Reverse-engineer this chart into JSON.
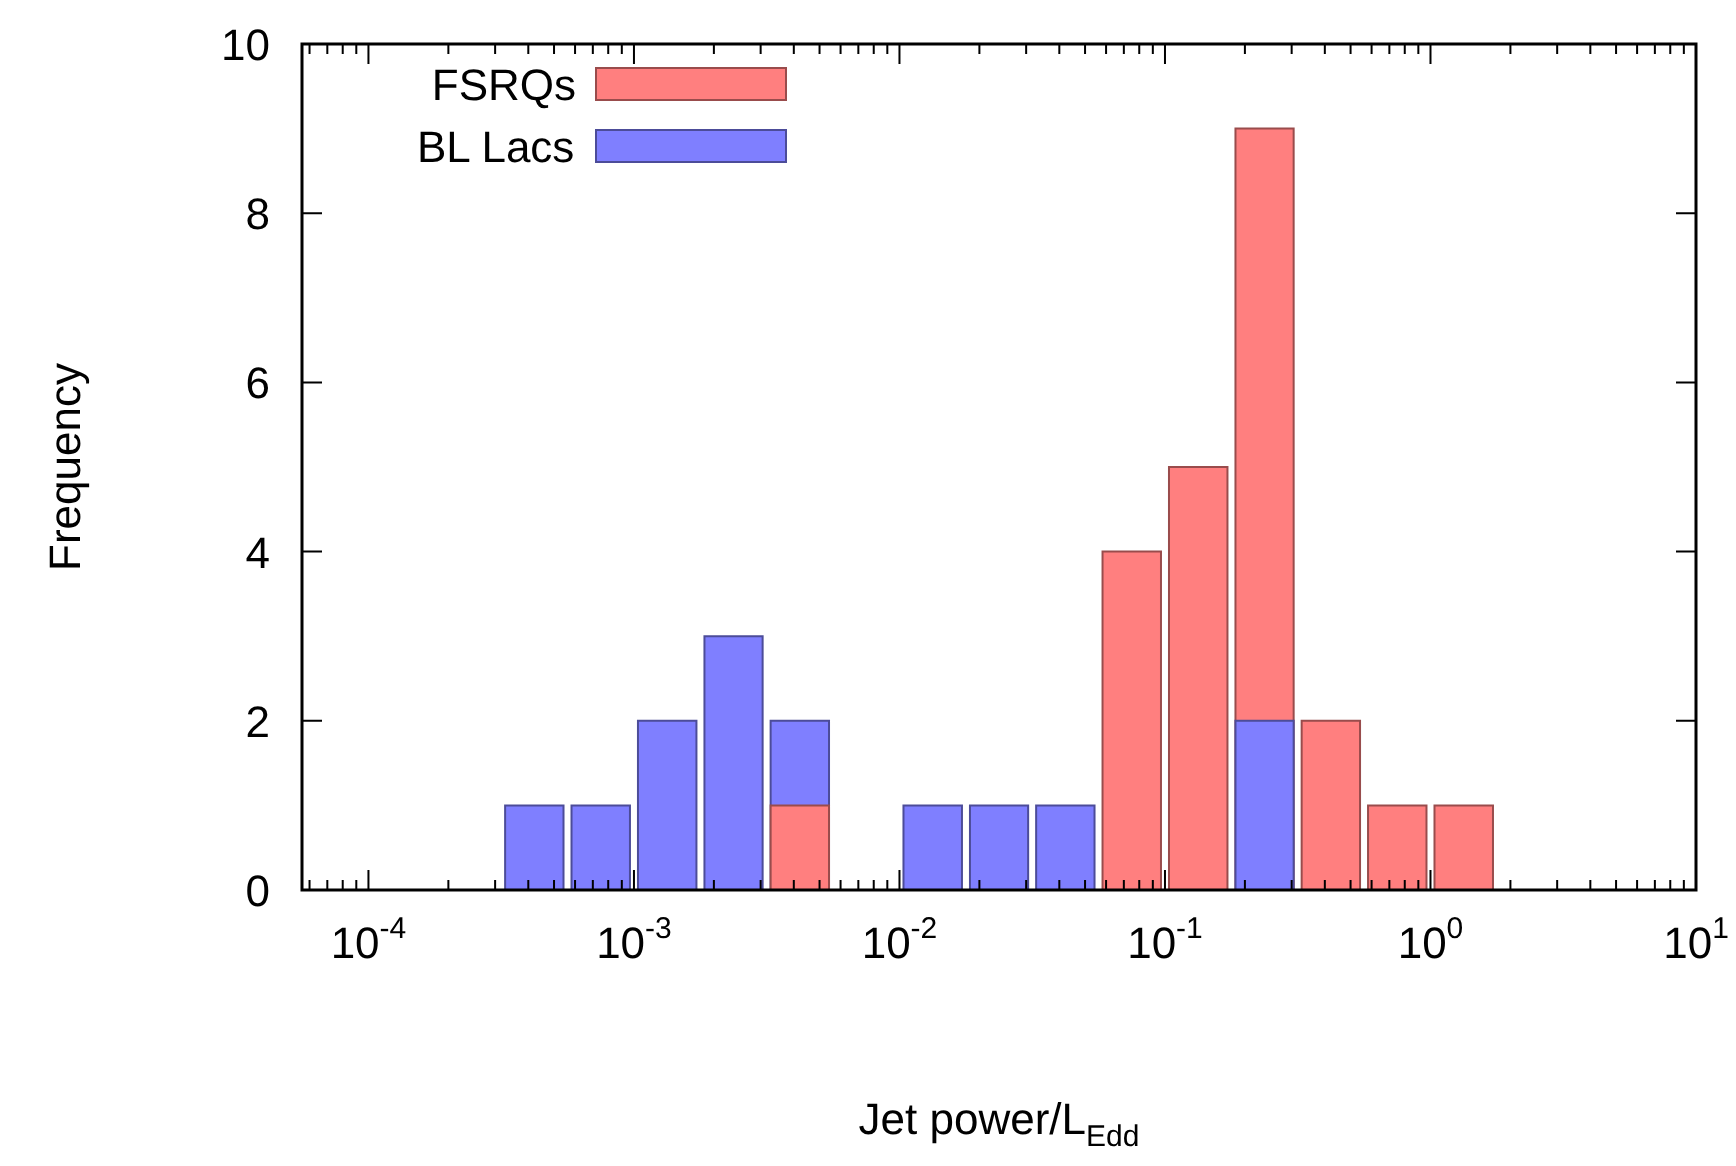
{
  "chart_data": {
    "type": "histogram",
    "xlabel": "Jet power/L$_{Edd}$",
    "ylabel": "Frequency",
    "log": "x",
    "bins": [
      0.000316,
      0.000562,
      0.001,
      0.00178,
      0.00316,
      0.00562,
      0.01,
      0.0178,
      0.0316,
      0.0562,
      0.1,
      0.178,
      0.316,
      0.562,
      1,
      1.78
    ],
    "series": [
      {
        "name": "FSRQs",
        "color": "#ff7f7f",
        "values": [
          0,
          0,
          0,
          0,
          1,
          0,
          0,
          0,
          0,
          4,
          5,
          9,
          2,
          1,
          1
        ]
      },
      {
        "name": "BL Lacs",
        "color": "#7f7fff",
        "values": [
          1,
          1,
          2,
          3,
          2,
          0,
          1,
          1,
          1,
          0,
          0,
          2,
          0,
          0,
          0
        ]
      }
    ],
    "xlim": [
      5.62e-05,
      10
    ],
    "xticks": [
      {
        "value": 0.0001,
        "label": "10$^{-4}$"
      },
      {
        "value": 0.001,
        "label": "10$^{-3}$"
      },
      {
        "value": 0.01,
        "label": "10$^{-2}$"
      },
      {
        "value": 0.1,
        "label": "10$^{-1}$"
      },
      {
        "value": 1,
        "label": "10$^{0}$"
      },
      {
        "value": 10,
        "label": "10$^{1}$"
      }
    ],
    "ylim": [
      0,
      10
    ],
    "yticks": [
      0,
      2,
      4,
      6,
      8,
      10
    ],
    "legend": "top left"
  }
}
